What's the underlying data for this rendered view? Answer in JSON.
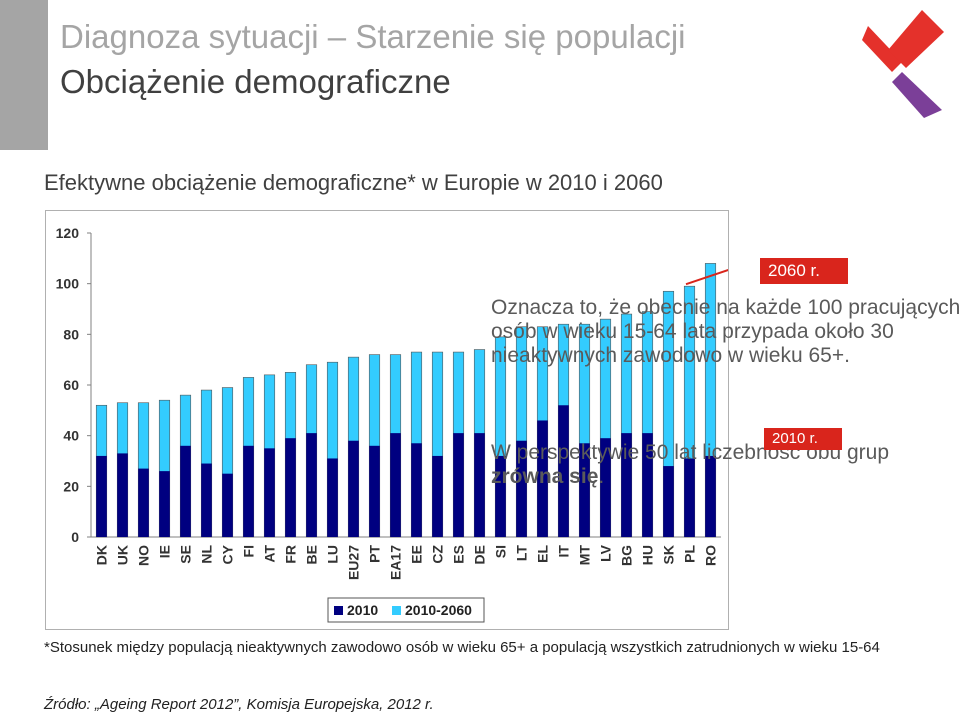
{
  "slide": {
    "title_line1": "Diagnoza sytuacji – Starzenie się populacji",
    "title_line2": "Obciążenie demograficzne",
    "subtitle": "Efektywne obciążenie demograficzne* w Europie w 2010 i 2060",
    "footnote": "*Stosunek między populacją nieaktywnych zawodowo osób w wieku 65+ a populacją wszystkich zatrudnionych w wieku 15-64",
    "source": "Źródło: „Ageing Report 2012”, Komisja Europejska, 2012 r.",
    "tag_2060": "2060 r.",
    "tag_2010": "2010 r.",
    "annotation_1": "Oznacza to, że obecnie na każde 100 pracujących osób w wieku 15-64 lata przypada około 30 nieaktywnych zawodowo w wieku 65+.",
    "annotation_2_prefix": "W perspektywie 50 lat liczebność obu grup ",
    "annotation_2_bold": "zrówna się",
    "annotation_2_suffix": ".",
    "colors": {
      "accent": "#d9251c",
      "series_2010": "#000080",
      "series_2060": "#33ccff",
      "logo_red": "#e4312b",
      "logo_purple": "#7b3f98"
    }
  },
  "chart_data": {
    "type": "bar",
    "stacked": "overlay",
    "categories": [
      "DK",
      "UK",
      "NO",
      "IE",
      "SE",
      "NL",
      "CY",
      "FI",
      "AT",
      "FR",
      "BE",
      "LU",
      "EU27",
      "PT",
      "EA17",
      "EE",
      "CZ",
      "ES",
      "DE",
      "SI",
      "LT",
      "EL",
      "IT",
      "MT",
      "LV",
      "BG",
      "HU",
      "SK",
      "PL",
      "RO"
    ],
    "series": [
      {
        "name": "2010",
        "color": "#000080",
        "values": [
          32,
          33,
          27,
          26,
          36,
          29,
          25,
          36,
          35,
          39,
          41,
          31,
          38,
          36,
          41,
          37,
          32,
          41,
          41,
          32,
          38,
          46,
          52,
          37,
          39,
          41,
          41,
          28,
          31,
          32
        ]
      },
      {
        "name": "2010-2060",
        "color": "#33ccff",
        "values": [
          52,
          53,
          53,
          54,
          56,
          58,
          59,
          63,
          64,
          65,
          68,
          69,
          71,
          72,
          72,
          73,
          73,
          73,
          74,
          79,
          83,
          83,
          84,
          84,
          86,
          88,
          89,
          97,
          99,
          108
        ]
      }
    ],
    "ylim": [
      0,
      120
    ],
    "yticks": [
      0,
      20,
      40,
      60,
      80,
      100,
      120
    ],
    "grid": false,
    "legend": "bottom"
  }
}
